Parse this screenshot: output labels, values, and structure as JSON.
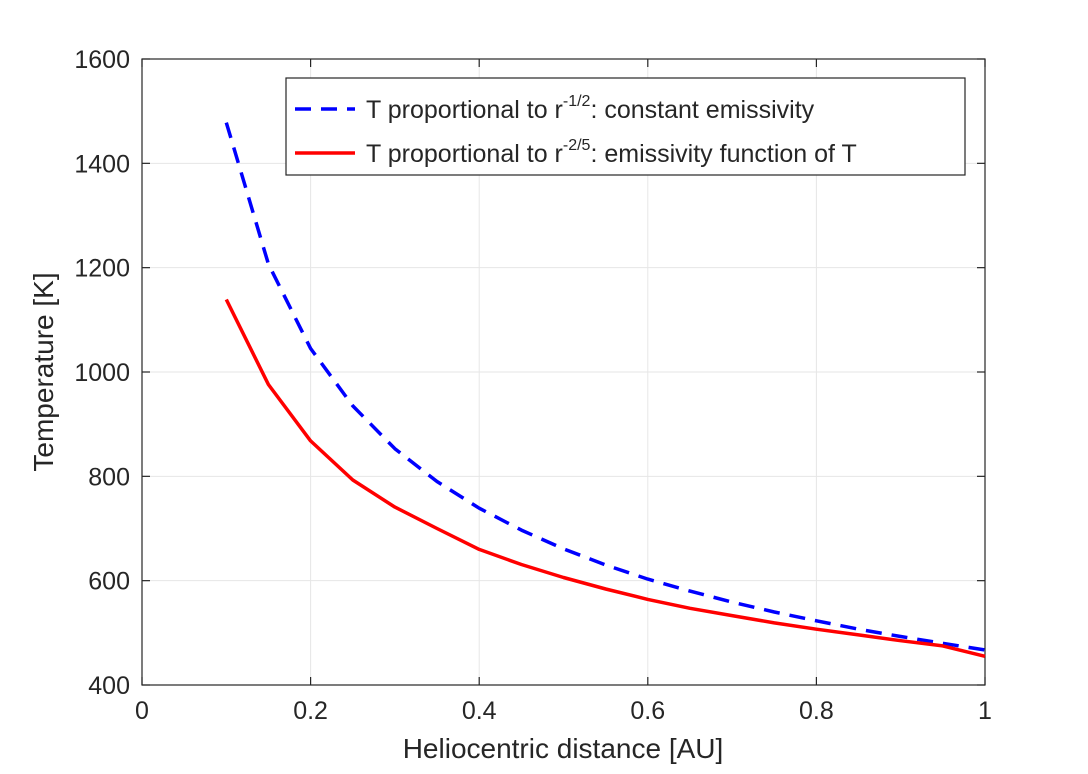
{
  "chart_data": {
    "type": "line",
    "xlabel": "Heliocentric distance [AU]",
    "ylabel": "Temperature [K]",
    "xlim": [
      0,
      1
    ],
    "ylim": [
      400,
      1600
    ],
    "xticks": [
      0,
      0.2,
      0.4,
      0.6,
      0.8,
      1
    ],
    "xtick_labels": [
      "0",
      "0.2",
      "0.4",
      "0.6",
      "0.8",
      "1"
    ],
    "yticks": [
      400,
      600,
      800,
      1000,
      1200,
      1400,
      1600
    ],
    "ytick_labels": [
      "400",
      "600",
      "800",
      "1000",
      "1200",
      "1400",
      "1600"
    ],
    "grid": true,
    "legend_position": "top-right",
    "series": [
      {
        "name": "T proportional to r^-1/2: constant emissivity",
        "legend_prefix": "T proportional to r",
        "legend_exponent": "-1/2",
        "legend_suffix": ": constant emissivity",
        "color": "#0000ff",
        "style": "dashed",
        "x": [
          0.1,
          0.15,
          0.2,
          0.25,
          0.3,
          0.35,
          0.4,
          0.45,
          0.5,
          0.55,
          0.6,
          0.65,
          0.7,
          0.75,
          0.8,
          0.85,
          0.9,
          0.95,
          1.0
        ],
        "values": [
          1478,
          1207,
          1045,
          935,
          853,
          790,
          739,
          697,
          661,
          630,
          603,
          580,
          559,
          540,
          523,
          507,
          493,
          480,
          467
        ]
      },
      {
        "name": "T proportional to r^-2/5: emissivity function of T",
        "legend_prefix": "T proportional to r",
        "legend_exponent": "-2/5",
        "legend_suffix": ": emissivity function of T",
        "color": "#ff0000",
        "style": "solid",
        "x": [
          0.1,
          0.15,
          0.2,
          0.25,
          0.3,
          0.35,
          0.4,
          0.45,
          0.5,
          0.55,
          0.6,
          0.65,
          0.7,
          0.75,
          0.8,
          0.85,
          0.9,
          0.95,
          1.0
        ],
        "values": [
          1139,
          976,
          868,
          793,
          741,
          700,
          660,
          631,
          606,
          584,
          564,
          547,
          533,
          519,
          507,
          496,
          485,
          475,
          455
        ]
      }
    ]
  }
}
